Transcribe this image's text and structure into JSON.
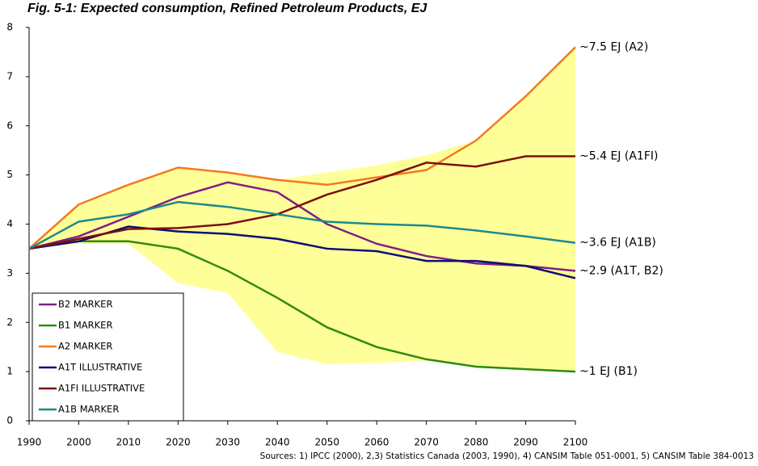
{
  "chart_data": {
    "type": "line",
    "title": "Fig. 5-1: Expected consumption, Refined Petroleum Products, EJ",
    "source": "Sources: 1) IPCC (2000), 2,3) Statistics Canada (2003, 1990), 4) CANSIM Table 051-0001, 5) CANSIM Table 384-0013",
    "x": [
      1990,
      2000,
      2010,
      2020,
      2030,
      2040,
      2050,
      2060,
      2070,
      2080,
      2090,
      2100
    ],
    "xlim": [
      1990,
      2100
    ],
    "xticks": [
      1990,
      2000,
      2010,
      2020,
      2030,
      2040,
      2050,
      2060,
      2070,
      2080,
      2090,
      2100
    ],
    "ylim": [
      0,
      8
    ],
    "yticks": [
      0,
      1,
      2,
      3,
      4,
      5,
      6,
      7,
      8
    ],
    "grid": false,
    "legend": "lower left",
    "band": {
      "color": "#ffff99",
      "lower": [
        3.5,
        3.6,
        3.6,
        2.8,
        2.6,
        1.4,
        1.15,
        1.18,
        1.22,
        1.1,
        1.05,
        1.0
      ],
      "upper": [
        3.5,
        4.4,
        4.8,
        5.15,
        5.05,
        4.9,
        5.05,
        5.2,
        5.4,
        5.7,
        6.6,
        7.6
      ]
    },
    "series": [
      {
        "name": "B2 MARKER",
        "color": "#7f1f86",
        "values": [
          3.5,
          3.75,
          4.15,
          4.55,
          4.85,
          4.65,
          4.0,
          3.6,
          3.35,
          3.2,
          3.15,
          3.05
        ]
      },
      {
        "name": "B1 MARKER",
        "color": "#2e8b14",
        "values": [
          3.5,
          3.65,
          3.65,
          3.5,
          3.05,
          2.5,
          1.9,
          1.5,
          1.25,
          1.1,
          1.05,
          1.0
        ]
      },
      {
        "name": "A2 MARKER",
        "color": "#f5791f",
        "values": [
          3.5,
          4.4,
          4.8,
          5.15,
          5.05,
          4.9,
          4.8,
          4.95,
          5.1,
          5.7,
          6.6,
          7.6
        ]
      },
      {
        "name": "A1T ILLUSTRATIVE",
        "color": "#0d0d78",
        "values": [
          3.5,
          3.65,
          3.95,
          3.85,
          3.8,
          3.7,
          3.5,
          3.45,
          3.25,
          3.25,
          3.15,
          2.9
        ]
      },
      {
        "name": "A1FI ILLUSTRATIVE",
        "color": "#7a1010",
        "values": [
          3.5,
          3.7,
          3.9,
          3.92,
          4.0,
          4.2,
          4.6,
          4.9,
          5.25,
          5.17,
          5.38,
          5.38
        ]
      },
      {
        "name": "A1B MARKER",
        "color": "#1b8a8c",
        "values": [
          3.5,
          4.05,
          4.2,
          4.45,
          4.35,
          4.2,
          4.05,
          4.0,
          3.97,
          3.87,
          3.75,
          3.62
        ]
      }
    ],
    "annotations": [
      {
        "text": "~7.5 EJ (A2)",
        "y": 7.6
      },
      {
        "text": "~5.4 EJ (A1FI)",
        "y": 5.38
      },
      {
        "text": "~3.6 EJ (A1B)",
        "y": 3.62
      },
      {
        "text": "~2.9 (A1T, B2)",
        "y": 3.05
      },
      {
        "text": "~1 EJ (B1)",
        "y": 1.0
      }
    ]
  }
}
